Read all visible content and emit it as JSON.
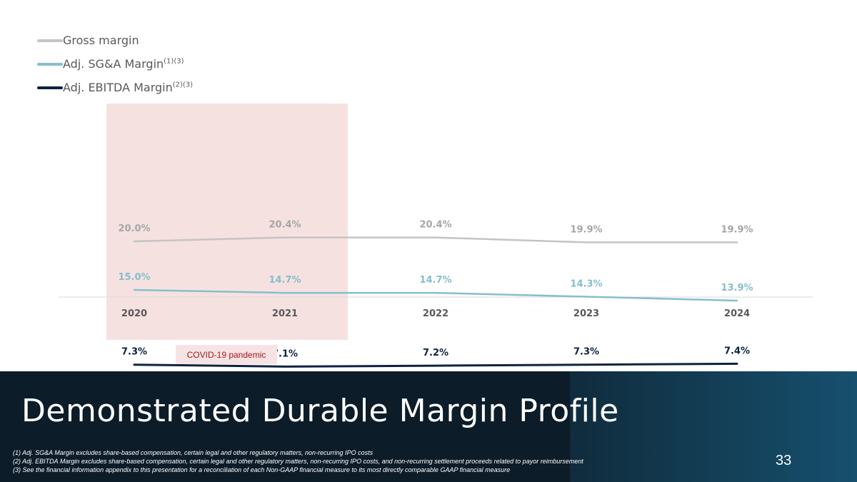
{
  "legend": {
    "items": [
      {
        "label": "Gross margin",
        "sup": "",
        "color": "#c4c4c4"
      },
      {
        "label": "Adj. SG&A Margin",
        "sup": "(1)(3)",
        "color": "#86bfca"
      },
      {
        "label": "Adj. EBITDA Margin",
        "sup": "(2)(3)",
        "color": "#0d2340"
      }
    ]
  },
  "annotation": {
    "label": "COVID-19 pandemic",
    "highlight_categories": [
      "2020",
      "2021"
    ]
  },
  "chart_data": {
    "type": "line",
    "categories": [
      "2020",
      "2021",
      "2022",
      "2023",
      "2024"
    ],
    "series": [
      {
        "name": "Gross margin",
        "color": "#c4c4c4",
        "label_color": "#a6a6a6",
        "values": [
          20.0,
          20.4,
          20.4,
          19.9,
          19.9
        ],
        "labels": [
          "20.0%",
          "20.4%",
          "20.4%",
          "19.9%",
          "19.9%"
        ]
      },
      {
        "name": "Adj. SG&A Margin",
        "color": "#86bfca",
        "label_color": "#86bfca",
        "values": [
          15.0,
          14.7,
          14.7,
          14.3,
          13.9
        ],
        "labels": [
          "15.0%",
          "14.7%",
          "14.7%",
          "14.3%",
          "13.9%"
        ]
      },
      {
        "name": "Adj. EBITDA Margin",
        "color": "#0d2340",
        "label_color": "#0d2340",
        "values": [
          7.3,
          7.1,
          7.2,
          7.3,
          7.4
        ],
        "labels": [
          "7.3%",
          "7.1%",
          "7.2%",
          "7.3%",
          "7.4%"
        ]
      }
    ],
    "title": "",
    "xlabel": "",
    "ylabel": "",
    "grid": false,
    "legend_position": "top-left"
  },
  "footer": {
    "title": "Demonstrated Durable Margin Profile",
    "footnotes": [
      "(1) Adj. SG&A Margin excludes share-based compensation, certain legal and other regulatory matters, non-recurring IPO costs",
      "(2) Adj. EBITDA Margin excludes share-based compensation, certain legal and other regulatory matters, non-recurring IPO costs, and non-recurring settlement proceeds related to payor reimbursement",
      "(3) See the financial information appendix to this presentation for a reconciliation of each Non-GAAP financial measure to its most directly comparable GAAP financial measure"
    ],
    "page_number": "33"
  }
}
